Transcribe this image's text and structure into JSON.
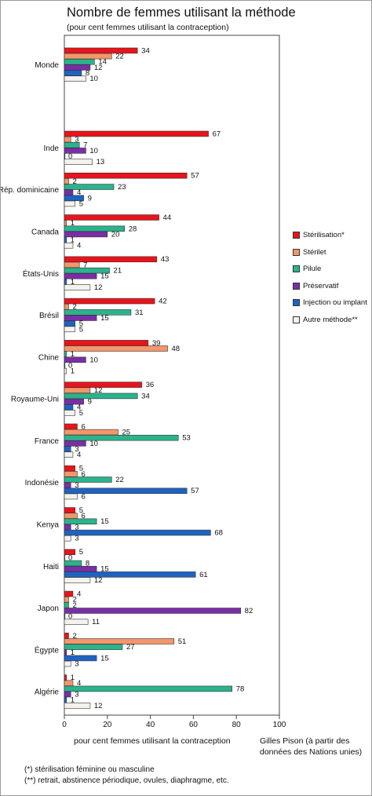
{
  "title": "Nombre de femmes utilisant la méthode",
  "subtitle": "(pour cent femmes utilisant la contraception)",
  "source": "Gilles Pison (à partir des données des Nations unies)",
  "notes": [
    "(*) stérilisation féminine ou masculine",
    "(**) retrait, abstinence périodique, ovules, diaphragme, etc."
  ],
  "chart_data": {
    "type": "bar",
    "orientation": "horizontal",
    "title": "Nombre de femmes utilisant la méthode",
    "subtitle": "(pour cent femmes utilisant la contraception)",
    "xlabel": "pour cent femmes utilisant la contraception",
    "ylabel": "",
    "xlim": [
      0,
      100
    ],
    "xticks": [
      0,
      20,
      40,
      60,
      80,
      100
    ],
    "grid": false,
    "legend_position": "right",
    "categories": [
      "Monde",
      "Inde",
      "Rép. dominicaine",
      "Canada",
      "États-Unis",
      "Brésil",
      "Chine",
      "Royaume-Uni",
      "France",
      "Indonésie",
      "Kenya",
      "Haiti",
      "Japon",
      "Égypte",
      "Algérie"
    ],
    "series": [
      {
        "name": "Stérilisation*",
        "color": "#e8141b",
        "values": [
          34,
          67,
          57,
          44,
          43,
          42,
          39,
          36,
          6,
          5,
          5,
          5,
          4,
          2,
          1
        ]
      },
      {
        "name": "Stérilet",
        "color": "#f5966a",
        "values": [
          22,
          3,
          2,
          1,
          7,
          2,
          48,
          12,
          25,
          6,
          6,
          0,
          2,
          51,
          4
        ]
      },
      {
        "name": "Pilule",
        "color": "#2bb38c",
        "values": [
          14,
          7,
          23,
          28,
          21,
          31,
          1,
          34,
          53,
          22,
          15,
          8,
          2,
          27,
          78
        ]
      },
      {
        "name": "Préservatif",
        "color": "#7a2ea6",
        "values": [
          12,
          10,
          4,
          20,
          15,
          15,
          10,
          9,
          10,
          3,
          3,
          15,
          82,
          1,
          3
        ]
      },
      {
        "name": "Injection ou implant",
        "color": "#1f63c2",
        "values": [
          8,
          0,
          9,
          1,
          1,
          5,
          0,
          4,
          3,
          57,
          68,
          61,
          0,
          15,
          1
        ]
      },
      {
        "name": "Autre méthode**",
        "color": "#f4f2ec",
        "values": [
          10,
          13,
          5,
          4,
          12,
          5,
          1,
          5,
          4,
          6,
          3,
          12,
          11,
          3,
          12
        ]
      }
    ]
  }
}
